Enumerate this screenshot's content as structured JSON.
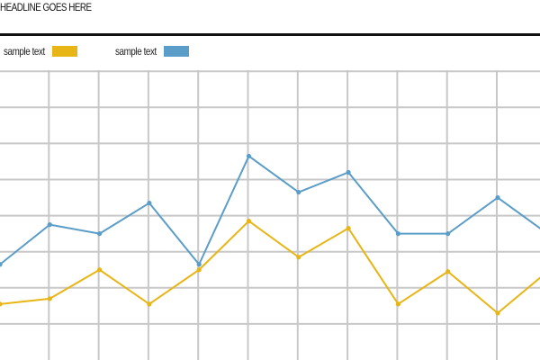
{
  "header": {
    "headline": "HEADLINE GOES HERE"
  },
  "colors": {
    "series_1": "#e8b516",
    "series_2": "#5b9dc9",
    "grid": "#c8c8c8",
    "rule": "#111111"
  },
  "chart_data": {
    "type": "line",
    "title": "HEADLINE GOES HERE",
    "xlabel": "",
    "ylabel": "",
    "grid": true,
    "legend_placement": "top-left",
    "x": [
      0,
      1,
      2,
      3,
      4,
      5,
      6,
      7,
      8,
      9,
      10,
      11
    ],
    "ylim": [
      0,
      8
    ],
    "series": [
      {
        "name": "sample text",
        "color": "#e8b516",
        "values": [
          1.5,
          1.65,
          2.45,
          1.5,
          2.45,
          3.8,
          2.8,
          3.6,
          1.5,
          2.4,
          1.25,
          2.4
        ]
      },
      {
        "name": "sample text",
        "color": "#5b9dc9",
        "values": [
          2.6,
          3.7,
          3.45,
          4.3,
          2.6,
          5.6,
          4.6,
          5.15,
          3.45,
          3.45,
          4.45,
          3.45
        ]
      }
    ]
  }
}
